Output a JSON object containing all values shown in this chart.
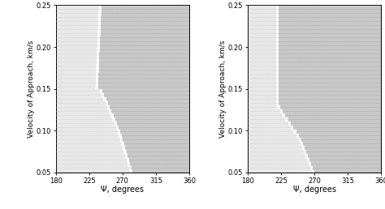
{
  "xlim": [
    180,
    360
  ],
  "ylim": [
    0.05,
    0.25
  ],
  "xlabel": "Ψ, degrees",
  "ylabel": "Velocity of Approach, km/s",
  "xticks": [
    180,
    225,
    270,
    315,
    360
  ],
  "yticks": [
    0.05,
    0.1,
    0.15,
    0.2,
    0.25
  ],
  "figsize": [
    4.74,
    2.58
  ],
  "dpi": 100,
  "nx": 72,
  "ny": 42,
  "arrow_color_dark": "#7a7a7a",
  "arrow_color_light": "#b0b0b0",
  "bg_color_dark": "#c8c8c8",
  "bg_color_light": "#e8e8e8",
  "white_color": "#ffffff",
  "tick_fontsize": 6.0,
  "label_fontsize": 7.0,
  "ylabel_fontsize": 6.5
}
